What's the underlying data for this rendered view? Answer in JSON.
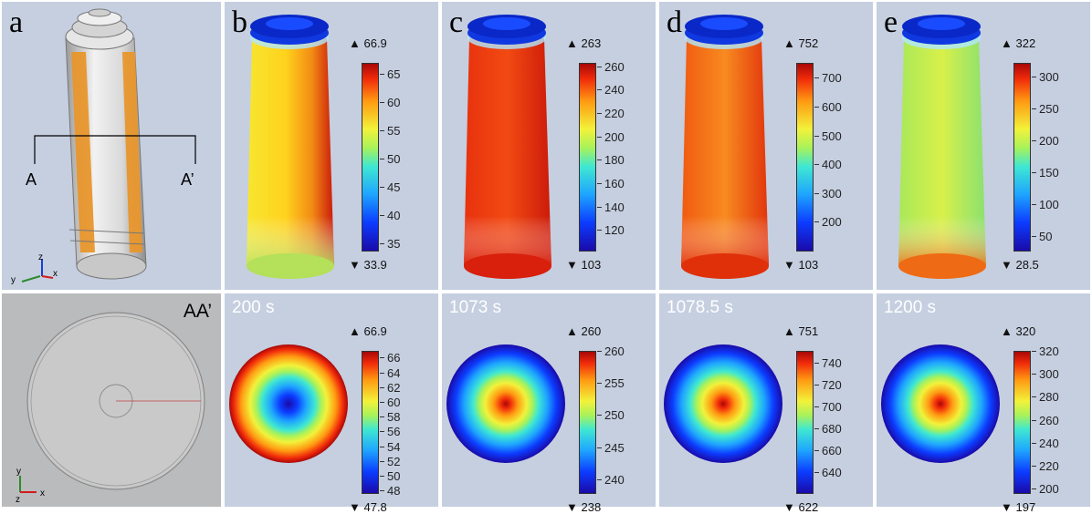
{
  "panel_a": {
    "label": "a",
    "section_left": "A",
    "section_right": "A’",
    "axes": {
      "z": "z",
      "y": "y",
      "x": "x"
    }
  },
  "panel_aa": {
    "label": "AA’",
    "axes": {
      "y": "y",
      "z": "z",
      "x": "x"
    }
  },
  "top_row": [
    {
      "label": "b",
      "max": "▲ 66.9",
      "min": "▼ 33.9",
      "ticks": [
        "65",
        "60",
        "55",
        "50",
        "45",
        "40",
        "35"
      ],
      "tick_values": [
        65,
        60,
        55,
        50,
        45,
        40,
        35
      ],
      "range": [
        33.9,
        66.9
      ],
      "colormap": "rainbow",
      "surface": "yellow-red-gradient"
    },
    {
      "label": "c",
      "max": "▲ 263",
      "min": "▼ 103",
      "ticks": [
        "260",
        "240",
        "220",
        "200",
        "180",
        "160",
        "140",
        "120"
      ],
      "tick_values": [
        260,
        240,
        220,
        200,
        180,
        160,
        140,
        120
      ],
      "range": [
        103,
        263
      ],
      "colormap": "rainbow",
      "surface": "red"
    },
    {
      "label": "d",
      "max": "▲ 752",
      "min": "▼ 103",
      "ticks": [
        "700",
        "600",
        "500",
        "400",
        "300",
        "200"
      ],
      "tick_values": [
        700,
        600,
        500,
        400,
        300,
        200
      ],
      "range": [
        103,
        752
      ],
      "colormap": "rainbow",
      "surface": "orange-red"
    },
    {
      "label": "e",
      "max": "▲ 322",
      "min": "▼ 28.5",
      "ticks": [
        "300",
        "250",
        "200",
        "150",
        "100",
        "50"
      ],
      "tick_values": [
        300,
        250,
        200,
        150,
        100,
        50
      ],
      "range": [
        28.5,
        322
      ],
      "colormap": "rainbow",
      "surface": "green-yellow-orange"
    }
  ],
  "bottom_row": [
    {
      "time": "200 s",
      "max": "▲ 66.9",
      "min": "▼ 47.8",
      "ticks": [
        "66",
        "64",
        "62",
        "60",
        "58",
        "56",
        "54",
        "52",
        "50",
        "48"
      ],
      "tick_values": [
        66,
        64,
        62,
        60,
        58,
        56,
        54,
        52,
        50,
        48
      ],
      "range": [
        47.8,
        66.9
      ],
      "center_hot": false
    },
    {
      "time": "1073 s",
      "max": "▲ 260",
      "min": "▼ 238",
      "ticks": [
        "260",
        "255",
        "250",
        "245",
        "240"
      ],
      "tick_values": [
        260,
        255,
        250,
        245,
        240
      ],
      "range": [
        238,
        260
      ],
      "center_hot": true
    },
    {
      "time": "1078.5 s",
      "max": "▲ 751",
      "min": "▼ 622",
      "ticks": [
        "740",
        "720",
        "700",
        "680",
        "660",
        "640"
      ],
      "tick_values": [
        740,
        720,
        700,
        680,
        660,
        640
      ],
      "range": [
        622,
        751
      ],
      "center_hot": true
    },
    {
      "time": "1200 s",
      "max": "▲ 320",
      "min": "▼ 197",
      "ticks": [
        "320",
        "300",
        "280",
        "260",
        "240",
        "220",
        "200"
      ],
      "tick_values": [
        320,
        300,
        280,
        260,
        240,
        220,
        200
      ],
      "range": [
        197,
        320
      ],
      "center_hot": true
    }
  ]
}
